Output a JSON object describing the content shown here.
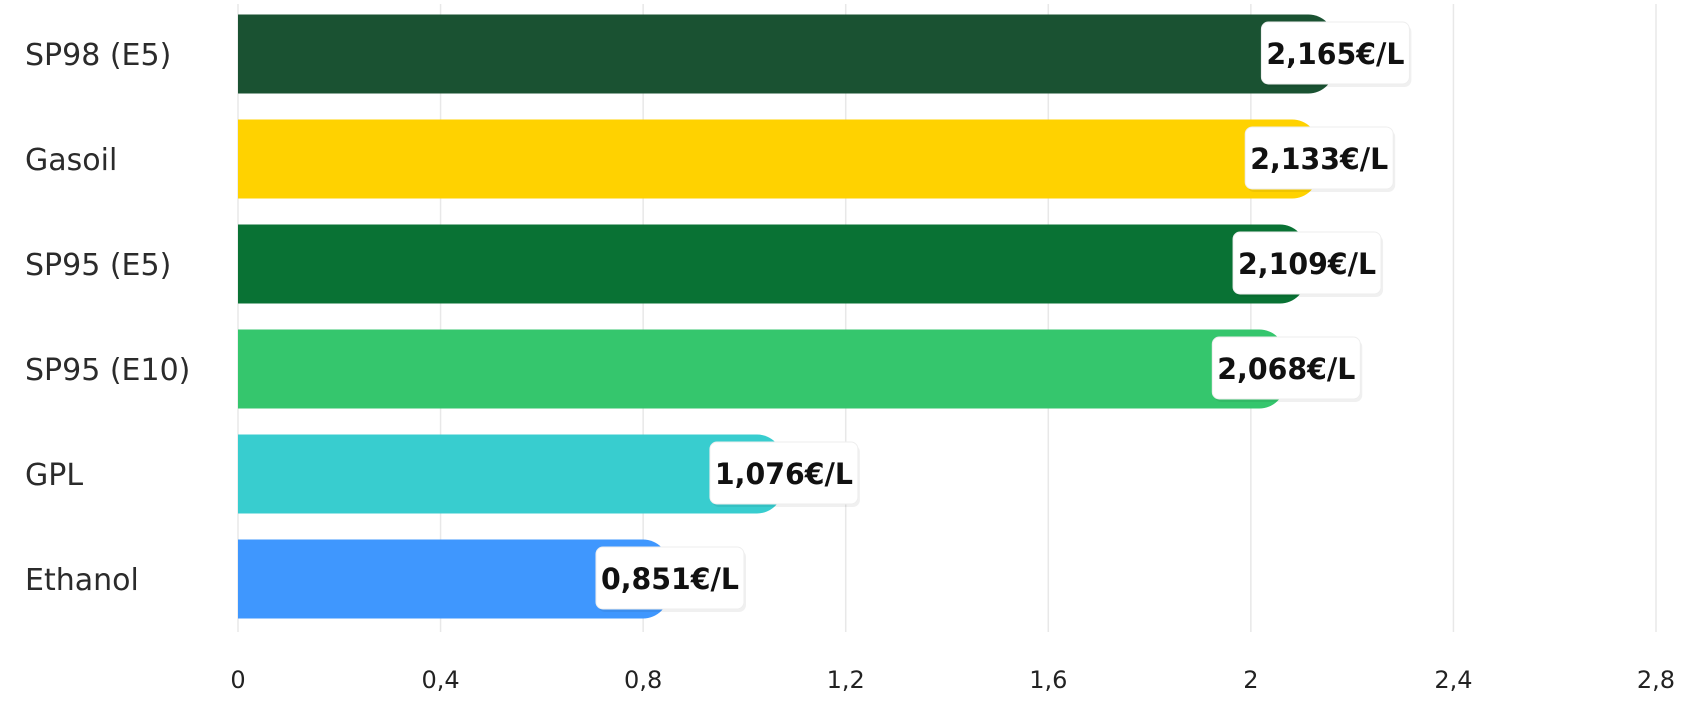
{
  "chart_data": {
    "type": "bar",
    "orientation": "horizontal",
    "title": "",
    "xlabel": "",
    "ylabel": "",
    "categories": [
      "SP98 (E5)",
      "Gasoil",
      "SP95 (E5)",
      "SP95 (E10)",
      "GPL",
      "Ethanol"
    ],
    "values": [
      2.165,
      2.133,
      2.109,
      2.068,
      1.076,
      0.851
    ],
    "value_labels": [
      "2,165€/L",
      "2,133€/L",
      "2,109€/L",
      "2,068€/L",
      "1,076€/L",
      "0,851€/L"
    ],
    "colors": [
      "#1a5232",
      "#ffd200",
      "#097234",
      "#35c66d",
      "#38cdcf",
      "#3f97fe"
    ],
    "xlim": [
      0,
      2.8
    ],
    "xticks": [
      0,
      0.4,
      0.8,
      1.2,
      1.6,
      2,
      2.4,
      2.8
    ],
    "xtick_labels": [
      "0",
      "0,4",
      "0,8",
      "1,2",
      "1,6",
      "2",
      "2,4",
      "2,8"
    ],
    "grid": true,
    "legend": "none"
  }
}
